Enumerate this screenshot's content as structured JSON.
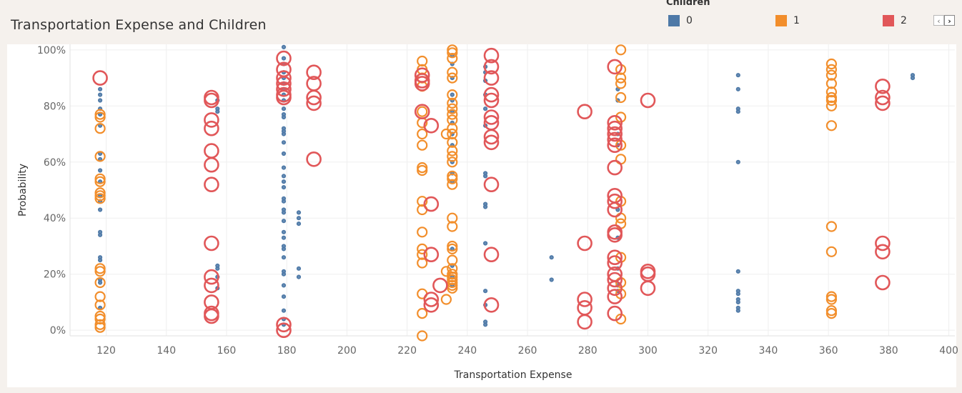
{
  "title": "Transportation Expense and Children",
  "legend": {
    "title": "Children",
    "items": [
      {
        "label": "0",
        "color": "#4e79a7"
      },
      {
        "label": "1",
        "color": "#f28e2b"
      },
      {
        "label": "2",
        "color": "#e15759"
      }
    ]
  },
  "pager": {
    "prev_icon": "chevron-left-icon",
    "next_icon": "chevron-right-icon",
    "prev_glyph": "‹",
    "next_glyph": "›"
  },
  "chart_data": {
    "type": "scatter",
    "title": "Transportation Expense and Children",
    "xlabel": "Transportation Expense",
    "ylabel": "Probability",
    "xlim": [
      108,
      402
    ],
    "ylim": [
      -0.02,
      1.02
    ],
    "xticks": [
      120,
      140,
      160,
      180,
      200,
      220,
      240,
      260,
      280,
      300,
      320,
      340,
      360,
      380,
      400
    ],
    "yticks": [
      0,
      0.2,
      0.4,
      0.6,
      0.8,
      1.0
    ],
    "ytick_labels": [
      "0%",
      "20%",
      "40%",
      "60%",
      "80%",
      "100%"
    ],
    "grid": true,
    "legend_position": "top-right",
    "marker_size_encodes": "Children",
    "series": [
      {
        "name": "0",
        "color": "#4e79a7",
        "points": [
          [
            118,
            0.82
          ],
          [
            118,
            0.84
          ],
          [
            118,
            0.86
          ],
          [
            118,
            0.79
          ],
          [
            118,
            0.77
          ],
          [
            118,
            0.73
          ],
          [
            118,
            0.63
          ],
          [
            118,
            0.61
          ],
          [
            118,
            0.57
          ],
          [
            118,
            0.53
          ],
          [
            118,
            0.48
          ],
          [
            118,
            0.46
          ],
          [
            118,
            0.43
          ],
          [
            118,
            0.35
          ],
          [
            118,
            0.34
          ],
          [
            118,
            0.26
          ],
          [
            118,
            0.25
          ],
          [
            118,
            0.18
          ],
          [
            118,
            0.17
          ],
          [
            118,
            0.08
          ],
          [
            157,
            0.82
          ],
          [
            157,
            0.79
          ],
          [
            157,
            0.78
          ],
          [
            157,
            0.23
          ],
          [
            157,
            0.22
          ],
          [
            157,
            0.19
          ],
          [
            157,
            0.15
          ],
          [
            179,
            1.01
          ],
          [
            179,
            0.97
          ],
          [
            179,
            0.95
          ],
          [
            179,
            0.92
          ],
          [
            179,
            0.9
          ],
          [
            179,
            0.88
          ],
          [
            179,
            0.86
          ],
          [
            179,
            0.84
          ],
          [
            179,
            0.82
          ],
          [
            179,
            0.79
          ],
          [
            179,
            0.77
          ],
          [
            179,
            0.76
          ],
          [
            179,
            0.72
          ],
          [
            179,
            0.71
          ],
          [
            179,
            0.7
          ],
          [
            179,
            0.67
          ],
          [
            179,
            0.63
          ],
          [
            179,
            0.58
          ],
          [
            179,
            0.55
          ],
          [
            179,
            0.53
          ],
          [
            179,
            0.51
          ],
          [
            179,
            0.47
          ],
          [
            179,
            0.46
          ],
          [
            179,
            0.43
          ],
          [
            179,
            0.42
          ],
          [
            179,
            0.39
          ],
          [
            179,
            0.35
          ],
          [
            179,
            0.33
          ],
          [
            179,
            0.3
          ],
          [
            179,
            0.29
          ],
          [
            179,
            0.26
          ],
          [
            179,
            0.21
          ],
          [
            179,
            0.2
          ],
          [
            179,
            0.16
          ],
          [
            179,
            0.12
          ],
          [
            179,
            0.07
          ],
          [
            179,
            0.04
          ],
          [
            179,
            0.02
          ],
          [
            184,
            0.42
          ],
          [
            184,
            0.4
          ],
          [
            184,
            0.38
          ],
          [
            184,
            0.22
          ],
          [
            184,
            0.19
          ],
          [
            235,
            0.98
          ],
          [
            235,
            0.95
          ],
          [
            235,
            0.9
          ],
          [
            235,
            0.84
          ],
          [
            235,
            0.82
          ],
          [
            235,
            0.78
          ],
          [
            235,
            0.74
          ],
          [
            235,
            0.7
          ],
          [
            235,
            0.66
          ],
          [
            235,
            0.6
          ],
          [
            235,
            0.56
          ],
          [
            235,
            0.53
          ],
          [
            235,
            0.29
          ],
          [
            235,
            0.23
          ],
          [
            235,
            0.19
          ],
          [
            235,
            0.16
          ],
          [
            246,
            0.94
          ],
          [
            246,
            0.92
          ],
          [
            246,
            0.89
          ],
          [
            246,
            0.84
          ],
          [
            246,
            0.79
          ],
          [
            246,
            0.73
          ],
          [
            246,
            0.56
          ],
          [
            246,
            0.55
          ],
          [
            246,
            0.45
          ],
          [
            246,
            0.44
          ],
          [
            246,
            0.31
          ],
          [
            246,
            0.14
          ],
          [
            246,
            0.09
          ],
          [
            246,
            0.03
          ],
          [
            246,
            0.02
          ],
          [
            268,
            0.26
          ],
          [
            268,
            0.18
          ],
          [
            290,
            0.86
          ],
          [
            290,
            0.82
          ],
          [
            290,
            0.7
          ],
          [
            290,
            0.66
          ],
          [
            290,
            0.43
          ],
          [
            290,
            0.33
          ],
          [
            290,
            0.22
          ],
          [
            290,
            0.16
          ],
          [
            290,
            0.14
          ],
          [
            330,
            0.91
          ],
          [
            330,
            0.86
          ],
          [
            330,
            0.79
          ],
          [
            330,
            0.78
          ],
          [
            330,
            0.6
          ],
          [
            330,
            0.21
          ],
          [
            330,
            0.14
          ],
          [
            330,
            0.13
          ],
          [
            330,
            0.11
          ],
          [
            330,
            0.1
          ],
          [
            330,
            0.08
          ],
          [
            330,
            0.07
          ],
          [
            388,
            0.91
          ],
          [
            388,
            0.9
          ]
        ]
      },
      {
        "name": "1",
        "color": "#f28e2b",
        "points": [
          [
            118,
            0.77
          ],
          [
            118,
            0.76
          ],
          [
            118,
            0.72
          ],
          [
            118,
            0.62
          ],
          [
            118,
            0.54
          ],
          [
            118,
            0.53
          ],
          [
            118,
            0.49
          ],
          [
            118,
            0.48
          ],
          [
            118,
            0.47
          ],
          [
            118,
            0.22
          ],
          [
            118,
            0.21
          ],
          [
            118,
            0.17
          ],
          [
            118,
            0.12
          ],
          [
            118,
            0.09
          ],
          [
            118,
            0.05
          ],
          [
            118,
            0.04
          ],
          [
            118,
            0.02
          ],
          [
            118,
            0.01
          ],
          [
            225,
            0.96
          ],
          [
            225,
            0.93
          ],
          [
            225,
            0.9
          ],
          [
            225,
            0.87
          ],
          [
            225,
            0.78
          ],
          [
            225,
            0.74
          ],
          [
            225,
            0.7
          ],
          [
            225,
            0.66
          ],
          [
            225,
            0.58
          ],
          [
            225,
            0.57
          ],
          [
            225,
            0.46
          ],
          [
            225,
            0.43
          ],
          [
            225,
            0.35
          ],
          [
            225,
            0.29
          ],
          [
            225,
            0.27
          ],
          [
            225,
            0.24
          ],
          [
            225,
            0.13
          ],
          [
            225,
            0.06
          ],
          [
            225,
            -0.02
          ],
          [
            233,
            0.7
          ],
          [
            233,
            0.21
          ],
          [
            233,
            0.11
          ],
          [
            235,
            1.0
          ],
          [
            235,
            0.99
          ],
          [
            235,
            0.97
          ],
          [
            235,
            0.92
          ],
          [
            235,
            0.9
          ],
          [
            235,
            0.84
          ],
          [
            235,
            0.81
          ],
          [
            235,
            0.79
          ],
          [
            235,
            0.77
          ],
          [
            235,
            0.75
          ],
          [
            235,
            0.72
          ],
          [
            235,
            0.7
          ],
          [
            235,
            0.67
          ],
          [
            235,
            0.64
          ],
          [
            235,
            0.62
          ],
          [
            235,
            0.6
          ],
          [
            235,
            0.55
          ],
          [
            235,
            0.54
          ],
          [
            235,
            0.52
          ],
          [
            235,
            0.4
          ],
          [
            235,
            0.37
          ],
          [
            235,
            0.3
          ],
          [
            235,
            0.29
          ],
          [
            235,
            0.25
          ],
          [
            235,
            0.22
          ],
          [
            235,
            0.2
          ],
          [
            235,
            0.19
          ],
          [
            235,
            0.18
          ],
          [
            235,
            0.17
          ],
          [
            235,
            0.16
          ],
          [
            235,
            0.15
          ],
          [
            291,
            1.0
          ],
          [
            291,
            0.93
          ],
          [
            291,
            0.9
          ],
          [
            291,
            0.88
          ],
          [
            291,
            0.83
          ],
          [
            291,
            0.76
          ],
          [
            291,
            0.66
          ],
          [
            291,
            0.61
          ],
          [
            291,
            0.46
          ],
          [
            291,
            0.4
          ],
          [
            291,
            0.38
          ],
          [
            291,
            0.26
          ],
          [
            291,
            0.17
          ],
          [
            291,
            0.13
          ],
          [
            291,
            0.04
          ],
          [
            361,
            0.95
          ],
          [
            361,
            0.93
          ],
          [
            361,
            0.91
          ],
          [
            361,
            0.88
          ],
          [
            361,
            0.85
          ],
          [
            361,
            0.83
          ],
          [
            361,
            0.82
          ],
          [
            361,
            0.8
          ],
          [
            361,
            0.73
          ],
          [
            361,
            0.37
          ],
          [
            361,
            0.28
          ],
          [
            361,
            0.12
          ],
          [
            361,
            0.11
          ],
          [
            361,
            0.07
          ],
          [
            361,
            0.06
          ]
        ]
      },
      {
        "name": "2",
        "color": "#e15759",
        "points": [
          [
            118,
            0.9
          ],
          [
            155,
            0.83
          ],
          [
            155,
            0.82
          ],
          [
            155,
            0.75
          ],
          [
            155,
            0.72
          ],
          [
            155,
            0.64
          ],
          [
            155,
            0.59
          ],
          [
            155,
            0.52
          ],
          [
            155,
            0.31
          ],
          [
            155,
            0.19
          ],
          [
            155,
            0.16
          ],
          [
            155,
            0.1
          ],
          [
            155,
            0.06
          ],
          [
            155,
            0.05
          ],
          [
            179,
            0.97
          ],
          [
            179,
            0.93
          ],
          [
            179,
            0.9
          ],
          [
            179,
            0.88
          ],
          [
            179,
            0.86
          ],
          [
            179,
            0.84
          ],
          [
            179,
            0.83
          ],
          [
            179,
            0.02
          ],
          [
            179,
            0.0
          ],
          [
            189,
            0.92
          ],
          [
            189,
            0.88
          ],
          [
            189,
            0.83
          ],
          [
            189,
            0.81
          ],
          [
            189,
            0.61
          ],
          [
            225,
            0.91
          ],
          [
            225,
            0.89
          ],
          [
            225,
            0.88
          ],
          [
            225,
            0.78
          ],
          [
            228,
            0.73
          ],
          [
            228,
            0.45
          ],
          [
            228,
            0.27
          ],
          [
            228,
            0.11
          ],
          [
            228,
            0.09
          ],
          [
            231,
            0.16
          ],
          [
            248,
            0.98
          ],
          [
            248,
            0.94
          ],
          [
            248,
            0.9
          ],
          [
            248,
            0.84
          ],
          [
            248,
            0.82
          ],
          [
            248,
            0.76
          ],
          [
            248,
            0.74
          ],
          [
            248,
            0.69
          ],
          [
            248,
            0.67
          ],
          [
            248,
            0.52
          ],
          [
            248,
            0.27
          ],
          [
            248,
            0.09
          ],
          [
            279,
            0.78
          ],
          [
            279,
            0.31
          ],
          [
            279,
            0.11
          ],
          [
            279,
            0.08
          ],
          [
            279,
            0.03
          ],
          [
            289,
            0.94
          ],
          [
            289,
            0.74
          ],
          [
            289,
            0.72
          ],
          [
            289,
            0.7
          ],
          [
            289,
            0.68
          ],
          [
            289,
            0.66
          ],
          [
            289,
            0.58
          ],
          [
            289,
            0.48
          ],
          [
            289,
            0.46
          ],
          [
            289,
            0.43
          ],
          [
            289,
            0.35
          ],
          [
            289,
            0.34
          ],
          [
            289,
            0.26
          ],
          [
            289,
            0.24
          ],
          [
            289,
            0.2
          ],
          [
            289,
            0.18
          ],
          [
            289,
            0.15
          ],
          [
            289,
            0.12
          ],
          [
            289,
            0.06
          ],
          [
            300,
            0.82
          ],
          [
            300,
            0.21
          ],
          [
            300,
            0.2
          ],
          [
            300,
            0.15
          ],
          [
            378,
            0.87
          ],
          [
            378,
            0.83
          ],
          [
            378,
            0.81
          ],
          [
            378,
            0.31
          ],
          [
            378,
            0.28
          ],
          [
            378,
            0.17
          ]
        ]
      }
    ]
  }
}
